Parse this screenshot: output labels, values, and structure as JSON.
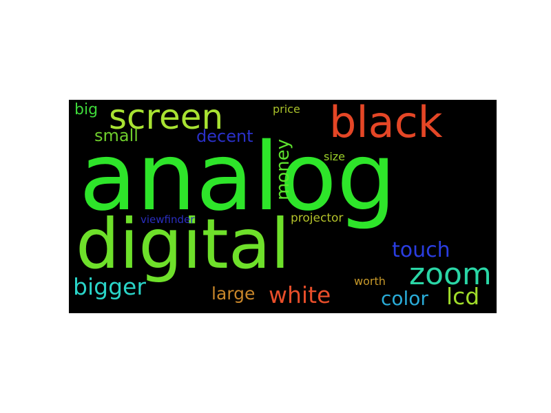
{
  "wordcloud": {
    "background": "#000000",
    "words": [
      {
        "id": "analog",
        "text": "analog",
        "color": "#2ee52a",
        "rotated": false
      },
      {
        "id": "digital",
        "text": "digital",
        "color": "#6ee02a",
        "rotated": false
      },
      {
        "id": "screen",
        "text": "screen",
        "color": "#a8e232",
        "rotated": false
      },
      {
        "id": "black",
        "text": "black",
        "color": "#e44626",
        "rotated": false
      },
      {
        "id": "big",
        "text": "big",
        "color": "#3ed83a",
        "rotated": false
      },
      {
        "id": "price",
        "text": "price",
        "color": "#a9c12a",
        "rotated": false
      },
      {
        "id": "small",
        "text": "small",
        "color": "#6fce2c",
        "rotated": false
      },
      {
        "id": "decent",
        "text": "decent",
        "color": "#2a30c8",
        "rotated": false
      },
      {
        "id": "money",
        "text": "money",
        "color": "#5de02e",
        "rotated": true
      },
      {
        "id": "size",
        "text": "size",
        "color": "#9bd02a",
        "rotated": false
      },
      {
        "id": "viewfinder",
        "text": "viewfinder",
        "color": "#2a2ec0",
        "rotated": false
      },
      {
        "id": "projector",
        "text": "projector",
        "color": "#b4c22a",
        "rotated": false
      },
      {
        "id": "touch",
        "text": "touch",
        "color": "#2a3de0",
        "rotated": false
      },
      {
        "id": "zoom",
        "text": "zoom",
        "color": "#2ad6a6",
        "rotated": false
      },
      {
        "id": "bigger",
        "text": "bigger",
        "color": "#2ad4c8",
        "rotated": false
      },
      {
        "id": "worth",
        "text": "worth",
        "color": "#c89a2a",
        "rotated": false
      },
      {
        "id": "large",
        "text": "large",
        "color": "#c8862a",
        "rotated": false
      },
      {
        "id": "white",
        "text": "white",
        "color": "#e84e2a",
        "rotated": false
      },
      {
        "id": "color",
        "text": "color",
        "color": "#2aacd8",
        "rotated": false
      },
      {
        "id": "lcd",
        "text": "lcd",
        "color": "#a0dc2a",
        "rotated": false
      }
    ]
  }
}
